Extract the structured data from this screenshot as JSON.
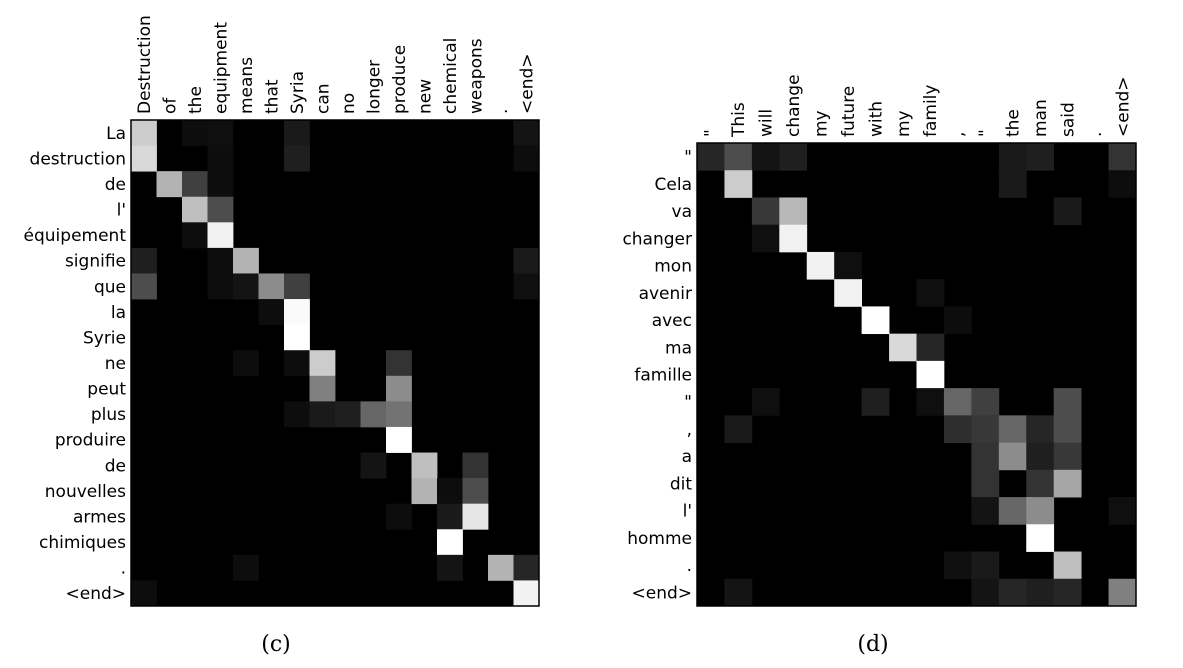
{
  "chart_data": [
    {
      "type": "heatmap",
      "caption": "(c)",
      "x": [
        "Destruction",
        "of",
        "the",
        "equipment",
        "means",
        "that",
        "Syria",
        "can",
        "no",
        "longer",
        "produce",
        "new",
        "chemical",
        "weapons",
        ".",
        "<end>"
      ],
      "y": [
        "La",
        "destruction",
        "de",
        "l'",
        "équipement",
        "signifie",
        "que",
        "la",
        "Syrie",
        "ne",
        "peut",
        "plus",
        "produire",
        "de",
        "nouvelles",
        "armes",
        "chimiques",
        ".",
        "<end>"
      ],
      "xlabel_position": "top",
      "ylabel_position": "left",
      "colormap": "gray",
      "value_range": [
        0,
        1
      ],
      "cells": [
        [
          0,
          0,
          0.8
        ],
        [
          0,
          2,
          0.05
        ],
        [
          0,
          3,
          0.06
        ],
        [
          0,
          6,
          0.1
        ],
        [
          0,
          15,
          0.08
        ],
        [
          1,
          0,
          0.85
        ],
        [
          1,
          3,
          0.05
        ],
        [
          1,
          6,
          0.12
        ],
        [
          1,
          15,
          0.05
        ],
        [
          2,
          1,
          0.7
        ],
        [
          2,
          2,
          0.25
        ],
        [
          2,
          3,
          0.05
        ],
        [
          3,
          2,
          0.75
        ],
        [
          3,
          3,
          0.3
        ],
        [
          4,
          2,
          0.05
        ],
        [
          4,
          3,
          0.95
        ],
        [
          5,
          0,
          0.12
        ],
        [
          5,
          3,
          0.05
        ],
        [
          5,
          4,
          0.7
        ],
        [
          5,
          15,
          0.1
        ],
        [
          6,
          0,
          0.3
        ],
        [
          6,
          3,
          0.05
        ],
        [
          6,
          4,
          0.08
        ],
        [
          6,
          5,
          0.55
        ],
        [
          6,
          6,
          0.25
        ],
        [
          6,
          15,
          0.06
        ],
        [
          7,
          5,
          0.05
        ],
        [
          7,
          6,
          0.98
        ],
        [
          8,
          6,
          1.0
        ],
        [
          9,
          4,
          0.05
        ],
        [
          9,
          6,
          0.05
        ],
        [
          9,
          7,
          0.8
        ],
        [
          9,
          10,
          0.2
        ],
        [
          10,
          7,
          0.5
        ],
        [
          10,
          10,
          0.55
        ],
        [
          11,
          6,
          0.05
        ],
        [
          11,
          7,
          0.1
        ],
        [
          11,
          8,
          0.12
        ],
        [
          11,
          9,
          0.4
        ],
        [
          11,
          10,
          0.45
        ],
        [
          12,
          10,
          1.0
        ],
        [
          13,
          9,
          0.08
        ],
        [
          13,
          11,
          0.75
        ],
        [
          13,
          13,
          0.2
        ],
        [
          14,
          11,
          0.7
        ],
        [
          14,
          12,
          0.05
        ],
        [
          14,
          13,
          0.3
        ],
        [
          15,
          10,
          0.05
        ],
        [
          15,
          12,
          0.1
        ],
        [
          15,
          13,
          0.9
        ],
        [
          16,
          12,
          1.0
        ],
        [
          17,
          4,
          0.05
        ],
        [
          17,
          12,
          0.08
        ],
        [
          17,
          14,
          0.7
        ],
        [
          17,
          15,
          0.15
        ],
        [
          18,
          0,
          0.05
        ],
        [
          18,
          15,
          0.95
        ]
      ]
    },
    {
      "type": "heatmap",
      "caption": "(d)",
      "x": [
        "\"",
        "This",
        "will",
        "change",
        "my",
        "future",
        "with",
        "my",
        "family",
        ",",
        "\"",
        "the",
        "man",
        "said",
        ".",
        "<end>"
      ],
      "y": [
        "\"",
        "Cela",
        "va",
        "changer",
        "mon",
        "avenir",
        "avec",
        "ma",
        "famille",
        "\"",
        ",",
        "a",
        "dit",
        "l'",
        "homme",
        ".",
        "<end>"
      ],
      "xlabel_position": "top",
      "ylabel_position": "left",
      "colormap": "gray",
      "value_range": [
        0,
        1
      ],
      "cells": [
        [
          0,
          0,
          0.15
        ],
        [
          0,
          1,
          0.3
        ],
        [
          0,
          2,
          0.08
        ],
        [
          0,
          3,
          0.12
        ],
        [
          0,
          11,
          0.1
        ],
        [
          0,
          12,
          0.12
        ],
        [
          0,
          15,
          0.2
        ],
        [
          1,
          1,
          0.8
        ],
        [
          1,
          11,
          0.1
        ],
        [
          1,
          15,
          0.05
        ],
        [
          2,
          2,
          0.22
        ],
        [
          2,
          3,
          0.72
        ],
        [
          2,
          13,
          0.1
        ],
        [
          3,
          2,
          0.06
        ],
        [
          3,
          3,
          0.95
        ],
        [
          4,
          4,
          0.95
        ],
        [
          4,
          5,
          0.06
        ],
        [
          5,
          5,
          0.95
        ],
        [
          5,
          8,
          0.06
        ],
        [
          6,
          6,
          1.0
        ],
        [
          6,
          9,
          0.05
        ],
        [
          7,
          7,
          0.85
        ],
        [
          7,
          8,
          0.15
        ],
        [
          8,
          8,
          1.0
        ],
        [
          9,
          2,
          0.06
        ],
        [
          9,
          6,
          0.12
        ],
        [
          9,
          8,
          0.06
        ],
        [
          9,
          9,
          0.4
        ],
        [
          9,
          10,
          0.25
        ],
        [
          9,
          13,
          0.3
        ],
        [
          10,
          1,
          0.1
        ],
        [
          10,
          9,
          0.18
        ],
        [
          10,
          10,
          0.22
        ],
        [
          10,
          11,
          0.4
        ],
        [
          10,
          12,
          0.15
        ],
        [
          10,
          13,
          0.3
        ],
        [
          11,
          10,
          0.2
        ],
        [
          11,
          11,
          0.55
        ],
        [
          11,
          12,
          0.12
        ],
        [
          11,
          13,
          0.22
        ],
        [
          12,
          10,
          0.2
        ],
        [
          12,
          12,
          0.2
        ],
        [
          12,
          13,
          0.65
        ],
        [
          13,
          10,
          0.08
        ],
        [
          13,
          11,
          0.4
        ],
        [
          13,
          12,
          0.55
        ],
        [
          13,
          15,
          0.06
        ],
        [
          14,
          12,
          1.0
        ],
        [
          15,
          9,
          0.06
        ],
        [
          15,
          10,
          0.1
        ],
        [
          15,
          13,
          0.75
        ],
        [
          16,
          1,
          0.08
        ],
        [
          16,
          10,
          0.08
        ],
        [
          16,
          11,
          0.15
        ],
        [
          16,
          12,
          0.12
        ],
        [
          16,
          13,
          0.15
        ],
        [
          16,
          15,
          0.5
        ]
      ]
    }
  ]
}
